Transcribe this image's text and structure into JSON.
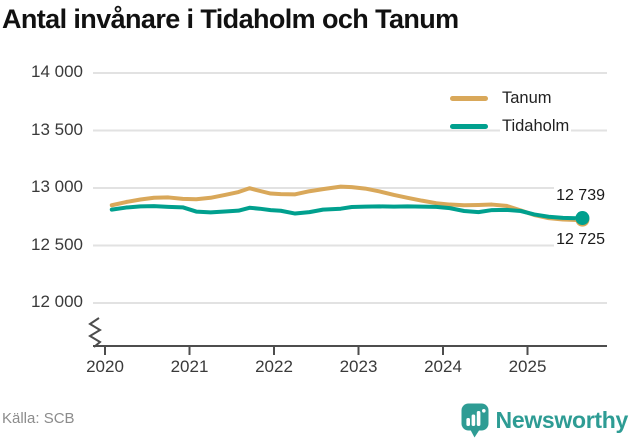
{
  "title": "Antal invånare i Tidaholm och Tanum",
  "source": "Källa: SCB",
  "brand": {
    "name": "Newsworthy",
    "color": "#2E9C94"
  },
  "chart_data": {
    "type": "line",
    "title": "Antal invånare i Tidaholm och Tanum",
    "xlabel": "",
    "ylabel": "",
    "ylim": [
      12000,
      14000
    ],
    "axis_break": true,
    "grid": "horizontal",
    "legend_position": "top-right",
    "y_ticks": [
      {
        "v": 14000,
        "label": "14 000"
      },
      {
        "v": 13500,
        "label": "13 500"
      },
      {
        "v": 13000,
        "label": "13 000"
      },
      {
        "v": 12500,
        "label": "12 500"
      },
      {
        "v": 12000,
        "label": "12 000"
      }
    ],
    "x_ticks": [
      {
        "v": 2020,
        "label": "2020"
      },
      {
        "v": 2021,
        "label": "2021"
      },
      {
        "v": 2022,
        "label": "2022"
      },
      {
        "v": 2023,
        "label": "2023"
      },
      {
        "v": 2024,
        "label": "2024"
      },
      {
        "v": 2025,
        "label": "2025"
      }
    ],
    "x": [
      2020.08,
      2020.25,
      2020.42,
      2020.58,
      2020.75,
      2020.92,
      2021.08,
      2021.25,
      2021.42,
      2021.58,
      2021.71,
      2021.83,
      2021.96,
      2022.08,
      2022.25,
      2022.42,
      2022.58,
      2022.79,
      2022.92,
      2023.08,
      2023.25,
      2023.42,
      2023.58,
      2023.75,
      2023.92,
      2024.08,
      2024.25,
      2024.42,
      2024.58,
      2024.75,
      2024.92,
      2025.08,
      2025.25,
      2025.42,
      2025.58,
      2025.65
    ],
    "series": [
      {
        "name": "Tanum",
        "color": "#D9A85A",
        "end_label": "12 725",
        "end_label_position": "below",
        "values": [
          12850,
          12878,
          12900,
          12915,
          12918,
          12905,
          12902,
          12915,
          12940,
          12965,
          12998,
          12975,
          12952,
          12947,
          12945,
          12972,
          12990,
          13012,
          13008,
          12995,
          12970,
          12940,
          12915,
          12890,
          12868,
          12856,
          12850,
          12852,
          12856,
          12845,
          12805,
          12765,
          12738,
          12726,
          12722,
          12725
        ]
      },
      {
        "name": "Tidaholm",
        "color": "#00A08E",
        "end_label": "12 739",
        "end_label_position": "above",
        "values": [
          12812,
          12830,
          12840,
          12842,
          12836,
          12832,
          12795,
          12788,
          12796,
          12803,
          12828,
          12820,
          12808,
          12802,
          12778,
          12790,
          12812,
          12820,
          12835,
          12838,
          12840,
          12838,
          12840,
          12838,
          12836,
          12825,
          12800,
          12790,
          12808,
          12810,
          12800,
          12770,
          12750,
          12740,
          12737,
          12739
        ]
      }
    ]
  }
}
